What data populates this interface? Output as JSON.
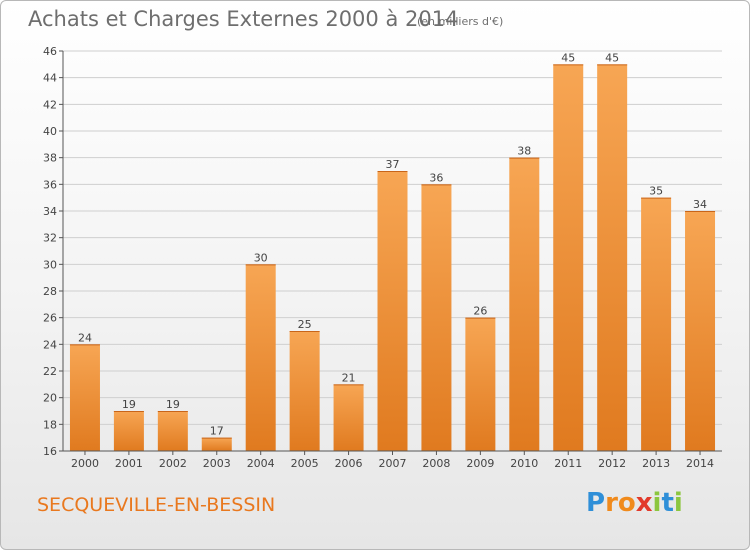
{
  "header": {
    "title": "Achats et Charges Externes 2000 à 2014",
    "subtitle": "(en milliers d'€)"
  },
  "footer": {
    "commune": "SECQUEVILLE-EN-BESSIN",
    "logo": {
      "letters": [
        "P",
        "r",
        "o",
        "x",
        "i",
        "t",
        "i"
      ],
      "colors": [
        "#2f8fd8",
        "#f08a1c",
        "#f08a1c",
        "#e23a2b",
        "#8cc63f",
        "#2f8fd8",
        "#8cc63f"
      ]
    }
  },
  "colors": {
    "bar_light": "#f7a654",
    "bar_dark": "#e07a1f",
    "grid": "#cfcfcf",
    "axis": "#555555"
  },
  "chart_data": {
    "type": "bar",
    "title": "Achats et Charges Externes 2000 à 2014",
    "subtitle": "(en milliers d'€)",
    "categories": [
      "2000",
      "2001",
      "2002",
      "2003",
      "2004",
      "2005",
      "2006",
      "2007",
      "2008",
      "2009",
      "2010",
      "2011",
      "2012",
      "2013",
      "2014"
    ],
    "values": [
      24,
      19,
      19,
      17,
      30,
      25,
      21,
      37,
      36,
      26,
      38,
      45,
      45,
      35,
      34
    ],
    "ylim": [
      16,
      46
    ],
    "yticks": [
      16,
      18,
      20,
      22,
      24,
      26,
      28,
      30,
      32,
      34,
      36,
      38,
      40,
      42,
      44,
      46
    ],
    "grid": true,
    "data_labels": true
  }
}
